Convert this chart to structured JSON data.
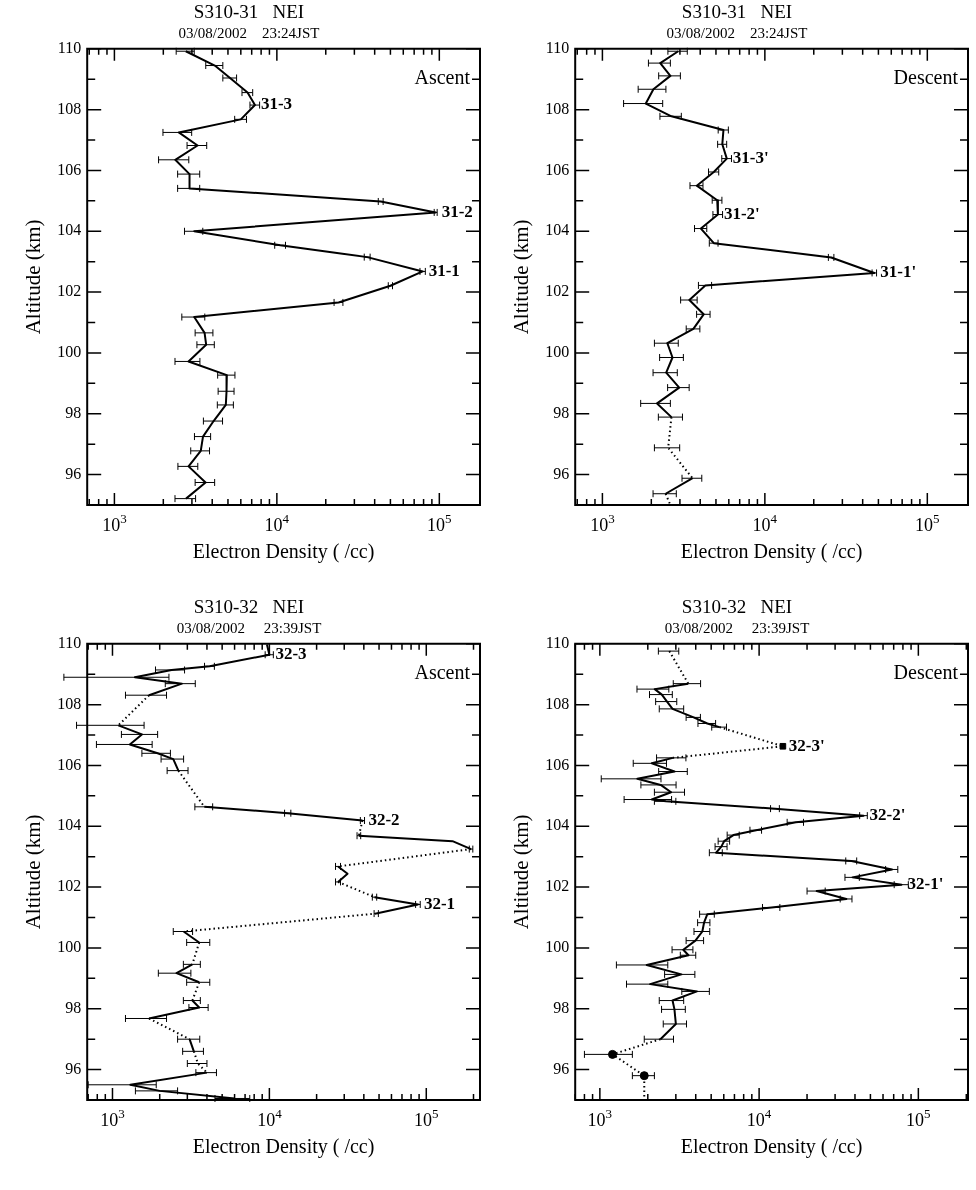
{
  "chart_data": [
    {
      "type": "line",
      "title": "S310-31   NEI",
      "subtitle": "03/08/2002    23:24JST",
      "xlabel": "Electron Density ( /cc)",
      "ylabel": "Altitude (km)",
      "log": "x",
      "xlim": [
        680,
        178000
      ],
      "ylim": [
        95,
        110
      ],
      "xticks": [
        {
          "value": 700,
          "label": null
        },
        {
          "value": 800,
          "label": null
        },
        {
          "value": 900,
          "label": null
        },
        {
          "value": 1000,
          "label": "10$^{3}$"
        },
        {
          "value": 2000,
          "label": null
        },
        {
          "value": 3000,
          "label": null
        },
        {
          "value": 4000,
          "label": null
        },
        {
          "value": 5000,
          "label": null
        },
        {
          "value": 6000,
          "label": null
        },
        {
          "value": 7000,
          "label": null
        },
        {
          "value": 8000,
          "label": null
        },
        {
          "value": 9000,
          "label": null
        },
        {
          "value": 10000,
          "label": "10$^{4}$"
        },
        {
          "value": 20000,
          "label": null
        },
        {
          "value": 30000,
          "label": null
        },
        {
          "value": 40000,
          "label": null
        },
        {
          "value": 50000,
          "label": null
        },
        {
          "value": 60000,
          "label": null
        },
        {
          "value": 70000,
          "label": null
        },
        {
          "value": 80000,
          "label": null
        },
        {
          "value": 90000,
          "label": null
        },
        {
          "value": 100000,
          "label": "10$^{5}$"
        }
      ],
      "yticks": [
        96,
        {
          "value": 97,
          "label": null
        },
        98,
        {
          "value": 99,
          "label": null
        },
        100,
        {
          "value": 101,
          "label": null
        },
        102,
        {
          "value": 103,
          "label": null
        },
        104,
        {
          "value": 105,
          "label": null
        },
        106,
        {
          "value": 107,
          "label": null
        },
        108,
        {
          "value": 109,
          "label": null
        },
        110
      ],
      "annotations": [
        "Ascent",
        {
          "text": "31-3",
          "x": 7330,
          "y": 108.15
        },
        {
          "text": "31-2",
          "x": 95000,
          "y": 104.62
        },
        {
          "text": "31-1",
          "x": 79000,
          "y": 102.68
        }
      ],
      "series": [
        {
          "color": "#000000",
          "line_style": "solid",
          "x": [
            2750,
            4150,
            5150,
            6600,
            7330,
            6000,
            2490,
            3250,
            2370,
            2900,
            2900,
            43600,
            95000,
            3100,
            10500,
            36000,
            79000,
            50000,
            24000,
            3100,
            3590,
            3670,
            2860,
            4920,
            4900,
            4850,
            4080,
            3510,
            3400,
            2860,
            3640,
            2760
          ],
          "values": [
            109.92,
            109.45,
            109.04,
            108.56,
            108.15,
            107.68,
            107.25,
            106.82,
            106.35,
            105.88,
            105.41,
            104.98,
            104.62,
            104.0,
            103.54,
            103.15,
            102.68,
            102.21,
            101.66,
            101.18,
            100.66,
            100.27,
            99.72,
            99.27,
            98.74,
            98.29,
            97.76,
            97.25,
            96.78,
            96.27,
            95.74,
            95.21
          ],
          "xerrors": [
            350,
            500,
            500,
            500,
            500,
            500,
            500,
            450,
            500,
            450,
            450,
            1500,
            2000,
            400,
            800,
            1500,
            3000,
            1500,
            1500,
            500,
            450,
            450,
            500,
            600,
            550,
            550,
            550,
            400,
            450,
            400,
            500,
            400
          ]
        }
      ]
    },
    {
      "type": "line",
      "title": "S310-31   NEI",
      "subtitle": "03/08/2002    23:24JST",
      "xlabel": "Electron Density ( /cc)",
      "ylabel": "Altitude (km)",
      "log": "x",
      "xlim": [
        680,
        178000
      ],
      "ylim": [
        95,
        110
      ],
      "xticks": [
        {
          "value": 700,
          "label": null
        },
        {
          "value": 800,
          "label": null
        },
        {
          "value": 900,
          "label": null
        },
        {
          "value": 1000,
          "label": "10$^{3}$"
        },
        {
          "value": 2000,
          "label": null
        },
        {
          "value": 3000,
          "label": null
        },
        {
          "value": 4000,
          "label": null
        },
        {
          "value": 5000,
          "label": null
        },
        {
          "value": 6000,
          "label": null
        },
        {
          "value": 7000,
          "label": null
        },
        {
          "value": 8000,
          "label": null
        },
        {
          "value": 9000,
          "label": null
        },
        {
          "value": 10000,
          "label": "10$^{4}$"
        },
        {
          "value": 20000,
          "label": null
        },
        {
          "value": 30000,
          "label": null
        },
        {
          "value": 40000,
          "label": null
        },
        {
          "value": 50000,
          "label": null
        },
        {
          "value": 60000,
          "label": null
        },
        {
          "value": 70000,
          "label": null
        },
        {
          "value": 80000,
          "label": null
        },
        {
          "value": 90000,
          "label": null
        },
        {
          "value": 100000,
          "label": "10$^{5}$"
        }
      ],
      "yticks": [
        96,
        {
          "value": 97,
          "label": null
        },
        98,
        {
          "value": 99,
          "label": null
        },
        100,
        {
          "value": 101,
          "label": null
        },
        102,
        {
          "value": 103,
          "label": null
        },
        104,
        {
          "value": 105,
          "label": null
        },
        106,
        {
          "value": 107,
          "label": null
        },
        108,
        {
          "value": 109,
          "label": null
        },
        110
      ],
      "annotations": [
        "Descent",
        {
          "text": "31-3'",
          "x": 5830,
          "y": 106.39
        },
        {
          "text": "31-2'",
          "x": 5140,
          "y": 104.55
        },
        {
          "text": "31-1'",
          "x": 47200,
          "y": 102.63
        }
      ],
      "series": [
        {
          "color": "#000000",
          "line_style": "solid",
          "x": [
            2930,
            2270,
            2620,
            2060,
            1850,
            2660,
            5560,
            5470,
            5830,
            4850,
            3810,
            5090,
            5140,
            4040,
            4850,
            25600,
            47200,
            4300,
            3430,
            4200,
            3630,
            2510,
            2700,
            2470,
            2970,
            2170,
            2660
          ],
          "values": [
            109.92,
            109.53,
            109.11,
            108.67,
            108.2,
            107.78,
            107.33,
            106.86,
            106.39,
            105.95,
            105.5,
            105.02,
            104.55,
            104.09,
            103.61,
            103.14,
            102.63,
            102.22,
            101.74,
            101.27,
            100.79,
            100.32,
            99.85,
            99.35,
            98.86,
            98.34,
            97.89
          ],
          "xerrors": [
            400,
            350,
            400,
            400,
            500,
            400,
            400,
            350,
            400,
            350,
            350,
            350,
            350,
            350,
            300,
            1000,
            1500,
            400,
            400,
            400,
            350,
            420,
            450,
            420,
            450,
            450,
            450
          ]
        },
        {
          "color": "#000000",
          "line_style": "dotted",
          "x": [
            2660,
            2540,
            3590
          ],
          "values": [
            97.89,
            96.88,
            95.88
          ],
          "xerrors": [
            null,
            450,
            null
          ]
        },
        {
          "color": "#000000",
          "line_style": "solid",
          "x": [
            3590,
            2450
          ],
          "values": [
            95.88,
            95.37
          ],
          "xerrors": [
            500,
            400
          ]
        },
        {
          "color": "#000000",
          "line_style": "dotted",
          "x": [
            2450,
            2620
          ],
          "values": [
            95.37,
            95.0
          ]
        }
      ]
    },
    {
      "type": "line",
      "title": "S310-32   NEI",
      "subtitle": "03/08/2002     23:39JST",
      "xlabel": "Electron Density ( /cc)",
      "ylabel": "Altitude (km)",
      "log": "x",
      "xlim": [
        690,
        220000
      ],
      "ylim": [
        95,
        110
      ],
      "xticks": [
        {
          "value": 700,
          "label": null
        },
        {
          "value": 800,
          "label": null
        },
        {
          "value": 900,
          "label": null
        },
        {
          "value": 1000,
          "label": "10$^{3}$"
        },
        {
          "value": 2000,
          "label": null
        },
        {
          "value": 3000,
          "label": null
        },
        {
          "value": 4000,
          "label": null
        },
        {
          "value": 5000,
          "label": null
        },
        {
          "value": 6000,
          "label": null
        },
        {
          "value": 7000,
          "label": null
        },
        {
          "value": 8000,
          "label": null
        },
        {
          "value": 9000,
          "label": null
        },
        {
          "value": 10000,
          "label": "10$^{4}$"
        },
        {
          "value": 20000,
          "label": null
        },
        {
          "value": 30000,
          "label": null
        },
        {
          "value": 40000,
          "label": null
        },
        {
          "value": 50000,
          "label": null
        },
        {
          "value": 60000,
          "label": null
        },
        {
          "value": 70000,
          "label": null
        },
        {
          "value": 80000,
          "label": null
        },
        {
          "value": 90000,
          "label": null
        },
        {
          "value": 100000,
          "label": "10$^{5}$"
        },
        {
          "value": 200000,
          "label": null
        }
      ],
      "yticks": [
        96,
        {
          "value": 97,
          "label": null
        },
        98,
        {
          "value": 99,
          "label": null
        },
        100,
        {
          "value": 101,
          "label": null
        },
        102,
        {
          "value": 103,
          "label": null
        },
        104,
        {
          "value": 105,
          "label": null
        },
        106,
        {
          "value": 107,
          "label": null
        },
        108,
        {
          "value": 109,
          "label": null
        },
        110
      ],
      "annotations": [
        "Ascent",
        {
          "text": "32-3",
          "x": 10000,
          "y": 109.64
        },
        {
          "text": "32-2",
          "x": 39200,
          "y": 104.19
        },
        {
          "text": "32-1",
          "x": 88500,
          "y": 101.43
        }
      ],
      "series": [
        {
          "color": "#000000",
          "line_style": "solid",
          "x": [
            9650,
            10000,
            4160,
            2380,
            1390,
            2770,
            1710
          ],
          "values": [
            109.98,
            109.64,
            109.26,
            109.14,
            108.9,
            108.69,
            108.31
          ],
          "xerrors": [
            null,
            600,
            300,
            500,
            900,
            600,
            500
          ]
        },
        {
          "color": "#000000",
          "line_style": "dotted",
          "x": [
            1710,
            1090
          ],
          "values": [
            108.31,
            107.32
          ]
        },
        {
          "color": "#000000",
          "line_style": "solid",
          "x": [
            1090,
            1540,
            1290,
            1940,
            2440,
            2630
          ],
          "values": [
            107.32,
            107.02,
            106.69,
            106.4,
            106.21,
            105.83
          ],
          "xerrors": [
            500,
            400,
            500,
            400,
            400,
            400
          ]
        },
        {
          "color": "#000000",
          "line_style": "dotted",
          "x": [
            2630,
            3850
          ],
          "values": [
            105.83,
            104.64
          ]
        },
        {
          "color": "#000000",
          "line_style": "solid",
          "x": [
            3850,
            13100,
            39200
          ],
          "values": [
            104.64,
            104.43,
            104.19
          ],
          "xerrors": [
            500,
            600,
            1200
          ]
        },
        {
          "color": "#000000",
          "line_style": "dotted",
          "x": [
            39200,
            37200
          ],
          "values": [
            104.19,
            103.69
          ]
        },
        {
          "color": "#000000",
          "line_style": "solid",
          "x": [
            37200,
            147000,
            193000
          ],
          "values": [
            103.69,
            103.51,
            103.25
          ],
          "xerrors": [
            1000,
            null,
            5000
          ]
        },
        {
          "color": "#000000",
          "line_style": "dotted",
          "x": [
            193000,
            27400
          ],
          "values": [
            103.25,
            102.68
          ]
        },
        {
          "color": "#000000",
          "line_style": "solid",
          "x": [
            27400,
            31500,
            27400
          ],
          "values": [
            102.68,
            102.44,
            102.17
          ],
          "xerrors": [
            1000,
            null,
            1000
          ]
        },
        {
          "color": "#000000",
          "line_style": "dotted",
          "x": [
            27400,
            46800
          ],
          "values": [
            102.17,
            101.67
          ]
        },
        {
          "color": "#000000",
          "line_style": "solid",
          "x": [
            46800,
            88500,
            48000
          ],
          "values": [
            101.67,
            101.43,
            101.13
          ],
          "xerrors": [
            1500,
            3000,
            1500
          ]
        },
        {
          "color": "#000000",
          "line_style": "dotted",
          "x": [
            48000,
            2840
          ],
          "values": [
            101.13,
            100.54
          ]
        },
        {
          "color": "#000000",
          "line_style": "solid",
          "x": [
            2840,
            3570
          ],
          "values": [
            100.54,
            100.18
          ],
          "xerrors": [
            400,
            600
          ]
        },
        {
          "color": "#000000",
          "line_style": "dotted",
          "x": [
            3570,
            3230
          ],
          "values": [
            100.18,
            99.46
          ]
        },
        {
          "color": "#000000",
          "line_style": "solid",
          "x": [
            3230,
            2560,
            3570
          ],
          "values": [
            99.46,
            99.17,
            98.87
          ],
          "xerrors": [
            400,
            600,
            600
          ]
        },
        {
          "color": "#000000",
          "line_style": "dotted",
          "x": [
            3570,
            3230
          ],
          "values": [
            98.87,
            98.27
          ]
        },
        {
          "color": "#000000",
          "line_style": "solid",
          "x": [
            3230,
            3570,
            1710
          ],
          "values": [
            98.27,
            98.04,
            97.68
          ],
          "xerrors": [
            400,
            500,
            500
          ]
        },
        {
          "color": "#000000",
          "line_style": "dotted",
          "x": [
            1710,
            3100
          ],
          "values": [
            97.68,
            97.0
          ]
        },
        {
          "color": "#000000",
          "line_style": "solid",
          "x": [
            3100,
            3300
          ],
          "values": [
            97.0,
            96.6
          ],
          "xerrors": [
            500,
            500
          ]
        },
        {
          "color": "#000000",
          "line_style": "dotted",
          "x": [
            3300,
            3500,
            4000
          ],
          "values": [
            96.6,
            96.2,
            95.9
          ],
          "xerrors": [
            null,
            500,
            null
          ]
        },
        {
          "color": "#000000",
          "line_style": "solid",
          "x": [
            4000,
            1300,
            2000,
            6000
          ],
          "values": [
            95.9,
            95.5,
            95.3,
            95.05
          ],
          "xerrors": [
            600,
            600,
            600,
            1500
          ]
        }
      ]
    },
    {
      "type": "line",
      "title": "S310-32   NEI",
      "subtitle": "03/08/2002     23:39JST",
      "xlabel": "Electron Density ( /cc)",
      "ylabel": "Altitude (km)",
      "log": "x",
      "xlim": [
        700,
        205000
      ],
      "ylim": [
        95,
        110
      ],
      "xticks": [
        {
          "value": 700,
          "label": null
        },
        {
          "value": 800,
          "label": null
        },
        {
          "value": 900,
          "label": null
        },
        {
          "value": 1000,
          "label": "10$^{3}$"
        },
        {
          "value": 2000,
          "label": null
        },
        {
          "value": 3000,
          "label": null
        },
        {
          "value": 4000,
          "label": null
        },
        {
          "value": 5000,
          "label": null
        },
        {
          "value": 6000,
          "label": null
        },
        {
          "value": 7000,
          "label": null
        },
        {
          "value": 8000,
          "label": null
        },
        {
          "value": 9000,
          "label": null
        },
        {
          "value": 10000,
          "label": "10$^{4}$"
        },
        {
          "value": 20000,
          "label": null
        },
        {
          "value": 30000,
          "label": null
        },
        {
          "value": 40000,
          "label": null
        },
        {
          "value": 50000,
          "label": null
        },
        {
          "value": 60000,
          "label": null
        },
        {
          "value": 70000,
          "label": null
        },
        {
          "value": 80000,
          "label": null
        },
        {
          "value": 90000,
          "label": null
        },
        {
          "value": 100000,
          "label": "10$^{5}$"
        },
        {
          "value": 200000,
          "label": null
        }
      ],
      "yticks": [
        96,
        {
          "value": 97,
          "label": null
        },
        98,
        {
          "value": 99,
          "label": null
        },
        100,
        {
          "value": 101,
          "label": null
        },
        102,
        {
          "value": 103,
          "label": null
        },
        104,
        {
          "value": 105,
          "label": null
        },
        106,
        {
          "value": 107,
          "label": null
        },
        108,
        {
          "value": 109,
          "label": null
        },
        110
      ],
      "annotations": [
        "Descent",
        {
          "text": "32-3'",
          "x": 14100,
          "y": 106.63
        },
        {
          "text": "32-2'",
          "x": 45300,
          "y": 104.35
        },
        {
          "text": "32-1'",
          "x": 78500,
          "y": 102.08
        }
      ],
      "series": [
        {
          "color": "#000000",
          "line_style": "dotted",
          "x": [
            2730,
            3590
          ],
          "values": [
            109.76,
            108.69
          ],
          "xerrors": [
            400,
            null
          ]
        },
        {
          "color": "#000000",
          "line_style": "solid",
          "x": [
            3590,
            2210,
            2450,
            2640,
            2860,
            3880,
            4730,
            5640
          ],
          "values": [
            108.69,
            108.51,
            108.33,
            108.1,
            107.86,
            107.58,
            107.38,
            107.26
          ],
          "xerrors": [
            700,
            500,
            400,
            400,
            500,
            400,
            600,
            600
          ]
        },
        {
          "color": "#000000",
          "line_style": "dotted",
          "x": [
            5640,
            14100,
            2870
          ],
          "values": [
            107.26,
            106.63,
            106.25
          ]
        },
        {
          "color": "#000000",
          "line_style": "solid",
          "x": [
            2870,
            2120,
            2940,
            1720,
            2410,
            2800,
            2120,
            2600,
            12600,
            45300,
            17000,
            9560,
            6900,
            6030,
            5790,
            5370,
            38000,
            68300,
            38600,
            78500,
            23000,
            35300,
            12000,
            4730,
            4510,
            4400,
            3980,
            3340,
            3600,
            1970,
            3250,
            2070,
            4070,
            2860,
            2940,
            3000,
            2400
          ],
          "values": [
            106.25,
            106.07,
            105.8,
            105.56,
            105.36,
            105.12,
            104.88,
            104.82,
            104.58,
            104.35,
            104.13,
            103.87,
            103.71,
            103.51,
            103.33,
            103.13,
            102.86,
            102.58,
            102.32,
            102.08,
            101.87,
            101.61,
            101.33,
            101.11,
            100.83,
            100.54,
            100.24,
            99.94,
            99.76,
            99.44,
            99.13,
            98.81,
            98.57,
            98.27,
            97.98,
            97.5,
            97.0
          ],
          "xerrors": [
            600,
            500,
            600,
            700,
            600,
            600,
            700,
            400,
            800,
            2500,
            2000,
            800,
            600,
            500,
            500,
            500,
            3000,
            6000,
            4000,
            8000,
            3000,
            3000,
            1500,
            500,
            400,
            500,
            500,
            500,
            400,
            700,
            700,
            600,
            800,
            500,
            500,
            500,
            500
          ]
        },
        {
          "color": "#000000",
          "line_style": "dotted",
          "x": [
            2400,
            1200,
            1900,
            1900
          ],
          "values": [
            97.0,
            96.5,
            95.8,
            95.0
          ],
          "xerrors": [
            null,
            400,
            300,
            null
          ]
        },
        {
          "type": "scatter",
          "color": "#000000",
          "marker": "square",
          "x": [
            14100
          ],
          "values": [
            106.63
          ]
        },
        {
          "type": "scatter",
          "color": "#000000",
          "marker": "circle",
          "x": [
            1200,
            1900
          ],
          "values": [
            96.5,
            95.8
          ]
        }
      ]
    }
  ]
}
